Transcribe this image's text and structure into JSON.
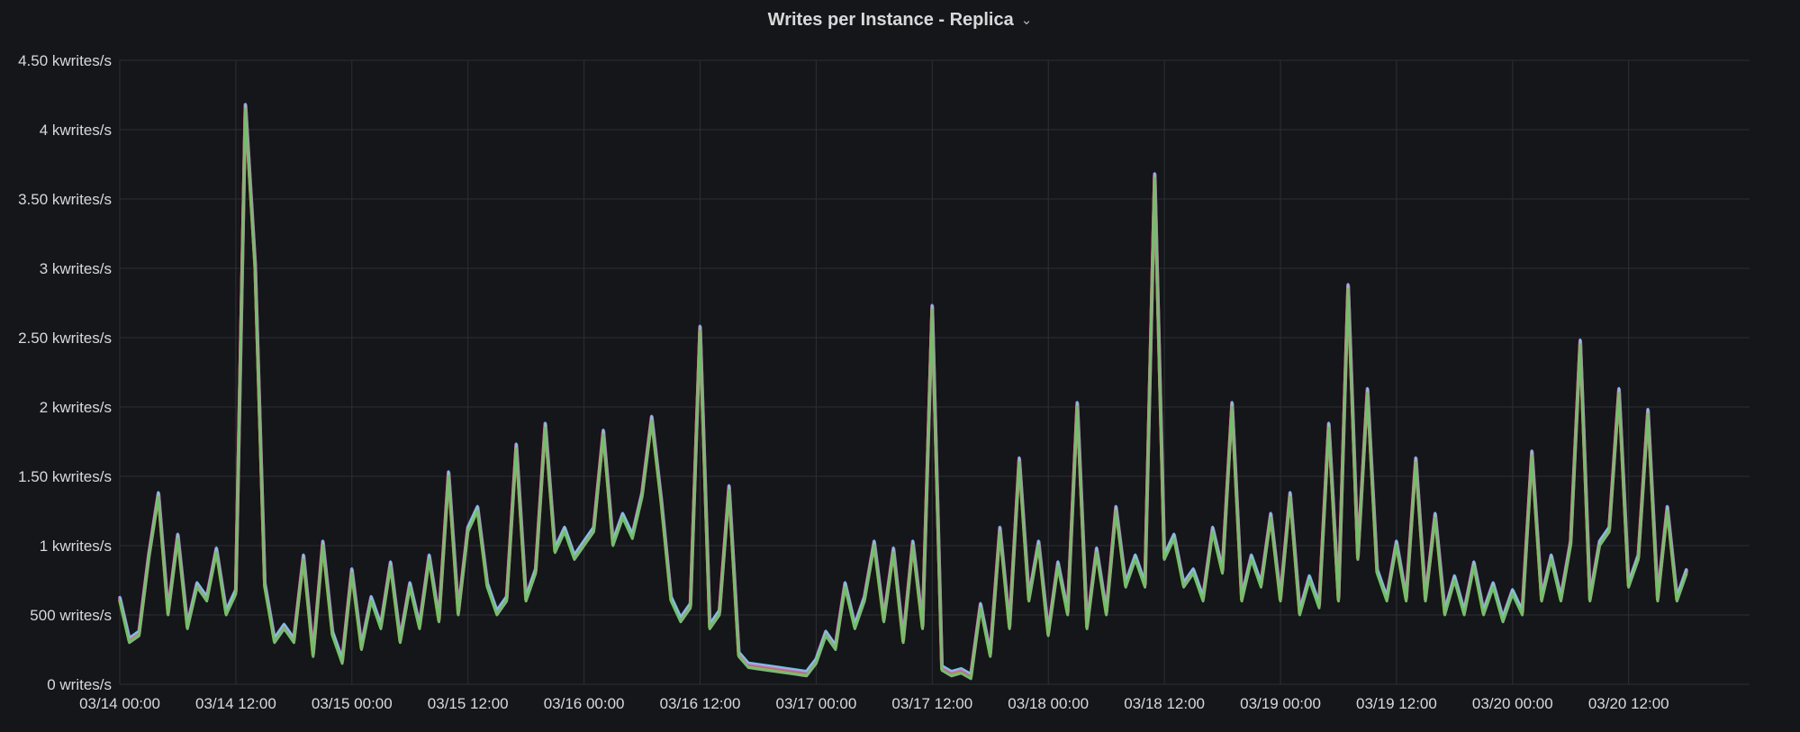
{
  "panel": {
    "title": "Writes per Instance - Replica",
    "menu_icon": "chevron-down-icon"
  },
  "colors": {
    "background": "#141619",
    "grid": "#2c2f34",
    "series": [
      "#73bf69",
      "#f2cc0c",
      "#8ab8ff",
      "#ff780a",
      "#f2495c",
      "#5794f2",
      "#b877d9",
      "#ff5ec4",
      "#6ed0e0"
    ]
  },
  "chart_data": {
    "type": "line",
    "title": "Writes per Instance - Replica",
    "xlabel": "",
    "ylabel": "",
    "ylim": [
      0,
      4500
    ],
    "y_ticks": [
      {
        "value": 0,
        "label": "0 writes/s"
      },
      {
        "value": 500,
        "label": "500 writes/s"
      },
      {
        "value": 1000,
        "label": "1 kwrites/s"
      },
      {
        "value": 1500,
        "label": "1.50 kwrites/s"
      },
      {
        "value": 2000,
        "label": "2 kwrites/s"
      },
      {
        "value": 2500,
        "label": "2.50 kwrites/s"
      },
      {
        "value": 3000,
        "label": "3 kwrites/s"
      },
      {
        "value": 3500,
        "label": "3.50 kwrites/s"
      },
      {
        "value": 4000,
        "label": "4 kwrites/s"
      },
      {
        "value": 4500,
        "label": "4.50 kwrites/s"
      }
    ],
    "x_range_hours": [
      0,
      168.5
    ],
    "x_ticks": [
      {
        "hour": 0,
        "label": "03/14 00:00"
      },
      {
        "hour": 12,
        "label": "03/14 12:00"
      },
      {
        "hour": 24,
        "label": "03/15 00:00"
      },
      {
        "hour": 36,
        "label": "03/15 12:00"
      },
      {
        "hour": 48,
        "label": "03/16 00:00"
      },
      {
        "hour": 60,
        "label": "03/16 12:00"
      },
      {
        "hour": 72,
        "label": "03/17 00:00"
      },
      {
        "hour": 84,
        "label": "03/17 12:00"
      },
      {
        "hour": 96,
        "label": "03/18 00:00"
      },
      {
        "hour": 108,
        "label": "03/18 12:00"
      },
      {
        "hour": 120,
        "label": "03/19 00:00"
      },
      {
        "hour": 132,
        "label": "03/19 12:00"
      },
      {
        "hour": 144,
        "label": "03/20 00:00"
      },
      {
        "hour": 156,
        "label": "03/20 12:00"
      }
    ],
    "grid": true,
    "legend": "none",
    "series": [
      {
        "points": [
          [
            0,
            600
          ],
          [
            1,
            300
          ],
          [
            2,
            350
          ],
          [
            3,
            900
          ],
          [
            4,
            1350
          ],
          [
            5,
            500
          ],
          [
            6,
            1050
          ],
          [
            7,
            400
          ],
          [
            8,
            700
          ],
          [
            9,
            600
          ],
          [
            10,
            950
          ],
          [
            11,
            500
          ],
          [
            12,
            650
          ],
          [
            13,
            4150
          ],
          [
            14,
            3000
          ],
          [
            15,
            700
          ],
          [
            16,
            300
          ],
          [
            17,
            400
          ],
          [
            18,
            300
          ],
          [
            19,
            900
          ],
          [
            20,
            200
          ],
          [
            21,
            1000
          ],
          [
            22,
            350
          ],
          [
            23,
            150
          ],
          [
            24,
            800
          ],
          [
            25,
            250
          ],
          [
            26,
            600
          ],
          [
            27,
            400
          ],
          [
            28,
            850
          ],
          [
            29,
            300
          ],
          [
            30,
            700
          ],
          [
            31,
            400
          ],
          [
            32,
            900
          ],
          [
            33,
            450
          ],
          [
            34,
            1500
          ],
          [
            35,
            500
          ],
          [
            36,
            1100
          ],
          [
            37,
            1250
          ],
          [
            38,
            700
          ],
          [
            39,
            500
          ],
          [
            40,
            600
          ],
          [
            41,
            1700
          ],
          [
            42,
            600
          ],
          [
            43,
            800
          ],
          [
            44,
            1850
          ],
          [
            45,
            950
          ],
          [
            46,
            1100
          ],
          [
            47,
            900
          ],
          [
            48,
            1000
          ],
          [
            49,
            1100
          ],
          [
            50,
            1800
          ],
          [
            51,
            1000
          ],
          [
            52,
            1200
          ],
          [
            53,
            1050
          ],
          [
            54,
            1350
          ],
          [
            55,
            1900
          ],
          [
            56,
            1300
          ],
          [
            57,
            600
          ],
          [
            58,
            450
          ],
          [
            59,
            550
          ],
          [
            60,
            2550
          ],
          [
            61,
            400
          ],
          [
            62,
            500
          ],
          [
            63,
            1400
          ],
          [
            64,
            200
          ],
          [
            65,
            120
          ],
          [
            66,
            110
          ],
          [
            67,
            100
          ],
          [
            68,
            90
          ],
          [
            69,
            80
          ],
          [
            70,
            70
          ],
          [
            71,
            60
          ],
          [
            72,
            150
          ],
          [
            73,
            350
          ],
          [
            74,
            250
          ],
          [
            75,
            700
          ],
          [
            76,
            400
          ],
          [
            77,
            600
          ],
          [
            78,
            1000
          ],
          [
            79,
            450
          ],
          [
            80,
            950
          ],
          [
            81,
            300
          ],
          [
            82,
            1000
          ],
          [
            83,
            400
          ],
          [
            84,
            2700
          ],
          [
            85,
            100
          ],
          [
            86,
            60
          ],
          [
            87,
            80
          ],
          [
            88,
            40
          ],
          [
            89,
            550
          ],
          [
            90,
            200
          ],
          [
            91,
            1100
          ],
          [
            92,
            400
          ],
          [
            93,
            1600
          ],
          [
            94,
            600
          ],
          [
            95,
            1000
          ],
          [
            96,
            350
          ],
          [
            97,
            850
          ],
          [
            98,
            500
          ],
          [
            99,
            2000
          ],
          [
            100,
            400
          ],
          [
            101,
            950
          ],
          [
            102,
            500
          ],
          [
            103,
            1250
          ],
          [
            104,
            700
          ],
          [
            105,
            900
          ],
          [
            106,
            700
          ],
          [
            107,
            3650
          ],
          [
            108,
            900
          ],
          [
            109,
            1050
          ],
          [
            110,
            700
          ],
          [
            111,
            800
          ],
          [
            112,
            600
          ],
          [
            113,
            1100
          ],
          [
            114,
            800
          ],
          [
            115,
            2000
          ],
          [
            116,
            600
          ],
          [
            117,
            900
          ],
          [
            118,
            700
          ],
          [
            119,
            1200
          ],
          [
            120,
            600
          ],
          [
            121,
            1350
          ],
          [
            122,
            500
          ],
          [
            123,
            750
          ],
          [
            124,
            550
          ],
          [
            125,
            1850
          ],
          [
            126,
            600
          ],
          [
            127,
            2850
          ],
          [
            128,
            900
          ],
          [
            129,
            2100
          ],
          [
            130,
            800
          ],
          [
            131,
            600
          ],
          [
            132,
            1000
          ],
          [
            133,
            600
          ],
          [
            134,
            1600
          ],
          [
            135,
            600
          ],
          [
            136,
            1200
          ],
          [
            137,
            500
          ],
          [
            138,
            750
          ],
          [
            139,
            500
          ],
          [
            140,
            850
          ],
          [
            141,
            500
          ],
          [
            142,
            700
          ],
          [
            143,
            450
          ],
          [
            144,
            650
          ],
          [
            145,
            500
          ],
          [
            146,
            1650
          ],
          [
            147,
            600
          ],
          [
            148,
            900
          ],
          [
            149,
            600
          ],
          [
            150,
            1000
          ],
          [
            151,
            2450
          ],
          [
            152,
            600
          ],
          [
            153,
            1000
          ],
          [
            154,
            1100
          ],
          [
            155,
            2100
          ],
          [
            156,
            700
          ],
          [
            157,
            900
          ],
          [
            158,
            1950
          ],
          [
            159,
            600
          ],
          [
            160,
            1250
          ],
          [
            161,
            600
          ],
          [
            162,
            800
          ]
        ]
      }
    ]
  }
}
